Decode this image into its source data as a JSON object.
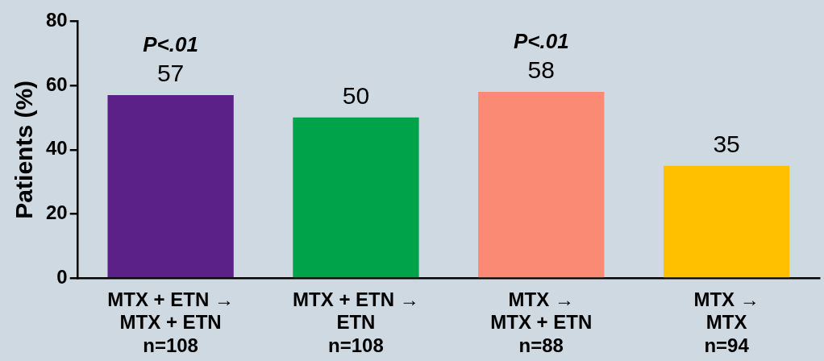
{
  "chart_data": {
    "type": "bar",
    "ylabel": "Patients (%)",
    "categories": [
      "MTX + ETN →\nMTX + ETN\nn=108",
      "MTX + ETN →\nETN\nn=108",
      "MTX →\nMTX + ETN\nn=88",
      "MTX →\nMTX\nn=94"
    ],
    "values": [
      57,
      50,
      58,
      35
    ],
    "colors": [
      "#5b2189",
      "#00a24a",
      "#fa8a74",
      "#ffc000"
    ],
    "ylim": [
      0,
      80
    ],
    "yticks": [
      0,
      20,
      40,
      60,
      80
    ],
    "grid": false,
    "legend": false,
    "data_labels": true,
    "annotations": [
      {
        "text": "P<.01",
        "x": "MTX + ETN →\nMTX + ETN\nn=108",
        "y": 57
      },
      {
        "text": "P<.01",
        "x": "MTX →\nMTX + ETN\nn=88",
        "y": 58
      }
    ]
  }
}
